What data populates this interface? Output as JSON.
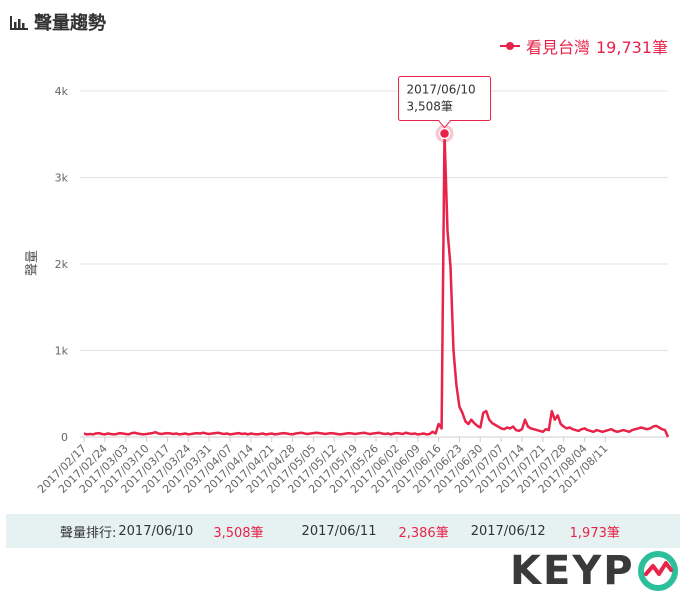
{
  "panel": {
    "title": "聲量趨勢",
    "icon": "bar-chart-icon"
  },
  "legend": {
    "name": "看見台灣",
    "total": "19,731筆",
    "color": "#e8234a"
  },
  "tooltip": {
    "date": "2017/06/10",
    "value": "3,508筆"
  },
  "chart_data": {
    "type": "line",
    "ylabel": "聲量",
    "ylim": [
      0,
      4000
    ],
    "yticks": [
      0,
      1000,
      2000,
      3000,
      4000
    ],
    "ytick_labels": [
      "0",
      "1k",
      "2k",
      "3k",
      "4k"
    ],
    "xtick_labels": [
      "2017/02/17",
      "2017/02/24",
      "2017/03/03",
      "2017/03/10",
      "2017/03/17",
      "2017/03/24",
      "2017/03/31",
      "2017/04/07",
      "2017/04/14",
      "2017/04/21",
      "2017/04/28",
      "2017/05/05",
      "2017/05/12",
      "2017/05/19",
      "2017/05/26",
      "2017/06/02",
      "2017/06/09",
      "2017/06/16",
      "2017/06/23",
      "2017/06/30",
      "2017/07/07",
      "2017/07/14",
      "2017/07/21",
      "2017/07/28",
      "2017/08/04",
      "2017/08/11"
    ],
    "grid": true,
    "series": [
      {
        "name": "看見台灣",
        "start_date": "2017/02/17",
        "values": [
          40,
          30,
          35,
          30,
          40,
          45,
          35,
          30,
          40,
          35,
          30,
          35,
          45,
          40,
          35,
          30,
          45,
          50,
          40,
          35,
          30,
          35,
          40,
          45,
          55,
          40,
          35,
          40,
          45,
          40,
          35,
          40,
          30,
          35,
          40,
          30,
          35,
          40,
          45,
          40,
          50,
          40,
          35,
          40,
          45,
          50,
          40,
          35,
          40,
          30,
          35,
          40,
          45,
          35,
          40,
          30,
          40,
          35,
          30,
          35,
          40,
          30,
          35,
          40,
          30,
          35,
          40,
          45,
          40,
          35,
          30,
          40,
          45,
          50,
          40,
          35,
          40,
          45,
          50,
          45,
          40,
          35,
          40,
          45,
          40,
          35,
          30,
          35,
          40,
          45,
          40,
          35,
          40,
          45,
          50,
          40,
          35,
          40,
          45,
          50,
          40,
          35,
          40,
          30,
          40,
          45,
          40,
          35,
          50,
          40,
          35,
          40,
          30,
          35,
          40,
          30,
          35,
          60,
          40,
          150,
          100,
          3508,
          2386,
          1973,
          1000,
          600,
          350,
          280,
          180,
          150,
          200,
          160,
          130,
          110,
          280,
          300,
          200,
          160,
          140,
          120,
          100,
          90,
          110,
          100,
          120,
          80,
          70,
          90,
          200,
          120,
          100,
          90,
          80,
          70,
          60,
          90,
          80,
          300,
          200,
          250,
          150,
          120,
          100,
          110,
          90,
          80,
          70,
          90,
          100,
          80,
          70,
          60,
          80,
          70,
          60,
          70,
          80,
          90,
          70,
          60,
          70,
          80,
          70,
          60,
          80,
          90,
          100,
          110,
          100,
          90,
          100,
          120,
          130,
          110,
          90,
          80,
          0
        ]
      }
    ]
  },
  "ranking": {
    "label": "聲量排行: ",
    "items": [
      {
        "date": "2017/06/10",
        "value": "3,508筆"
      },
      {
        "date": "2017/06/11",
        "value": "2,386筆"
      },
      {
        "date": "2017/06/12",
        "value": "1,973筆"
      }
    ]
  },
  "brand": {
    "logo_text": "KEYP"
  }
}
